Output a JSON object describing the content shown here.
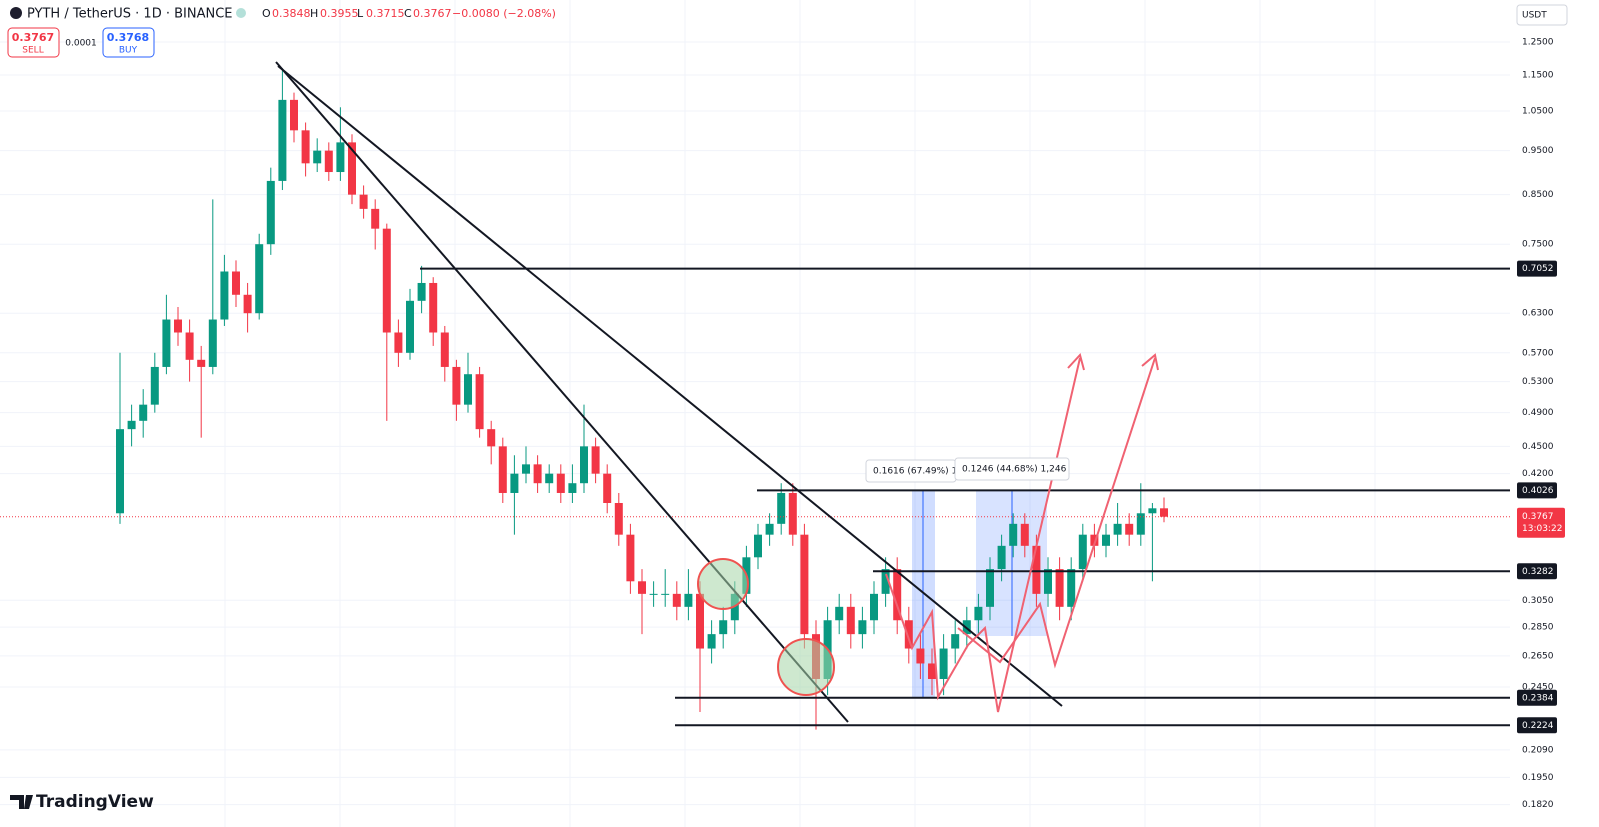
{
  "header": {
    "symbol": "PYTH / TetherUS · 1D · BINANCE",
    "o_label": "O",
    "o": 0.3848,
    "h_label": "H",
    "h": 0.3955,
    "l_label": "L",
    "l": 0.3715,
    "c_label": "C",
    "c": 0.3767,
    "change": "−0.0080 (−2.08%)"
  },
  "trade_panel": {
    "sell_price": 0.3767,
    "sell_label": "SELL",
    "spread": 0.0001,
    "buy_price": 0.3768,
    "buy_label": "BUY"
  },
  "currency": "USDT",
  "logo": "TradingView",
  "chart_data": {
    "type": "candlestick",
    "log_scale": true,
    "grid": true,
    "up_color": "#089981",
    "down_color": "#f23645",
    "ylim": [
      0.172,
      1.39
    ],
    "yticks": [
      {
        "value": 1.25,
        "label": "1.2500"
      },
      {
        "value": 1.15,
        "label": "1.1500"
      },
      {
        "value": 1.05,
        "label": "1.0500"
      },
      {
        "value": 0.95,
        "label": "0.9500"
      },
      {
        "value": 0.85,
        "label": "0.8500"
      },
      {
        "value": 0.75,
        "label": "0.7500"
      },
      {
        "value": 0.63,
        "label": "0.6300"
      },
      {
        "value": 0.57,
        "label": "0.5700"
      },
      {
        "value": 0.53,
        "label": "0.5300"
      },
      {
        "value": 0.49,
        "label": "0.4900"
      },
      {
        "value": 0.45,
        "label": "0.4500"
      },
      {
        "value": 0.42,
        "label": "0.4200"
      },
      {
        "value": 0.305,
        "label": "0.3050"
      },
      {
        "value": 0.285,
        "label": "0.2850"
      },
      {
        "value": 0.265,
        "label": "0.2650"
      },
      {
        "value": 0.245,
        "label": "0.2450"
      },
      {
        "value": 0.209,
        "label": "0.2090"
      },
      {
        "value": 0.195,
        "label": "0.1950"
      },
      {
        "value": 0.182,
        "label": "0.1820"
      }
    ],
    "open": [
      0.38,
      0.47,
      0.48,
      0.5,
      0.55,
      0.62,
      0.6,
      0.56,
      0.55,
      0.62,
      0.7,
      0.66,
      0.63,
      0.75,
      0.88,
      1.08,
      1.0,
      0.92,
      0.95,
      0.9,
      0.97,
      0.85,
      0.82,
      0.78,
      0.6,
      0.57,
      0.65,
      0.68,
      0.6,
      0.55,
      0.5,
      0.54,
      0.47,
      0.45,
      0.4,
      0.42,
      0.43,
      0.41,
      0.42,
      0.4,
      0.41,
      0.45,
      0.42,
      0.39,
      0.36,
      0.32,
      0.31,
      0.31,
      0.31,
      0.3,
      0.31,
      0.27,
      0.28,
      0.29,
      0.31,
      0.34,
      0.36,
      0.37,
      0.4,
      0.36,
      0.28,
      0.25,
      0.29,
      0.3,
      0.28,
      0.29,
      0.31,
      0.33,
      0.29,
      0.27,
      0.26,
      0.25,
      0.27,
      0.28,
      0.29,
      0.3,
      0.33,
      0.35,
      0.37,
      0.35,
      0.31,
      0.33,
      0.3,
      0.33,
      0.36,
      0.35,
      0.36,
      0.37,
      0.36,
      0.38,
      0.3848
    ],
    "high": [
      0.57,
      0.5,
      0.52,
      0.57,
      0.66,
      0.64,
      0.62,
      0.58,
      0.84,
      0.73,
      0.72,
      0.68,
      0.77,
      0.91,
      1.17,
      1.1,
      1.02,
      0.98,
      0.97,
      1.06,
      0.99,
      0.87,
      0.84,
      0.79,
      0.62,
      0.67,
      0.71,
      0.69,
      0.61,
      0.56,
      0.57,
      0.55,
      0.48,
      0.46,
      0.44,
      0.45,
      0.44,
      0.43,
      0.43,
      0.43,
      0.5,
      0.46,
      0.43,
      0.4,
      0.37,
      0.33,
      0.32,
      0.33,
      0.32,
      0.33,
      0.32,
      0.29,
      0.3,
      0.32,
      0.35,
      0.37,
      0.38,
      0.41,
      0.41,
      0.37,
      0.29,
      0.3,
      0.31,
      0.31,
      0.3,
      0.32,
      0.34,
      0.34,
      0.3,
      0.28,
      0.27,
      0.28,
      0.29,
      0.3,
      0.31,
      0.34,
      0.36,
      0.38,
      0.38,
      0.36,
      0.34,
      0.34,
      0.34,
      0.37,
      0.37,
      0.37,
      0.39,
      0.38,
      0.41,
      0.39,
      0.3955
    ],
    "low": [
      0.37,
      0.45,
      0.46,
      0.49,
      0.54,
      0.58,
      0.53,
      0.46,
      0.54,
      0.61,
      0.64,
      0.6,
      0.62,
      0.73,
      0.86,
      0.97,
      0.89,
      0.9,
      0.88,
      0.88,
      0.83,
      0.8,
      0.74,
      0.48,
      0.55,
      0.56,
      0.63,
      0.58,
      0.53,
      0.48,
      0.49,
      0.46,
      0.43,
      0.39,
      0.36,
      0.41,
      0.4,
      0.4,
      0.39,
      0.39,
      0.4,
      0.41,
      0.38,
      0.35,
      0.31,
      0.28,
      0.3,
      0.3,
      0.29,
      0.29,
      0.23,
      0.26,
      0.27,
      0.28,
      0.3,
      0.33,
      0.35,
      0.36,
      0.35,
      0.27,
      0.22,
      0.24,
      0.28,
      0.27,
      0.27,
      0.28,
      0.3,
      0.28,
      0.26,
      0.25,
      0.24,
      0.24,
      0.26,
      0.27,
      0.28,
      0.29,
      0.32,
      0.34,
      0.34,
      0.3,
      0.3,
      0.29,
      0.29,
      0.32,
      0.34,
      0.34,
      0.35,
      0.35,
      0.35,
      0.32,
      0.3715
    ],
    "close": [
      0.47,
      0.48,
      0.5,
      0.55,
      0.62,
      0.6,
      0.56,
      0.55,
      0.62,
      0.7,
      0.66,
      0.63,
      0.75,
      0.88,
      1.08,
      1.0,
      0.92,
      0.95,
      0.9,
      0.97,
      0.85,
      0.82,
      0.78,
      0.6,
      0.57,
      0.65,
      0.68,
      0.6,
      0.55,
      0.5,
      0.54,
      0.47,
      0.45,
      0.4,
      0.42,
      0.43,
      0.41,
      0.42,
      0.4,
      0.41,
      0.45,
      0.42,
      0.39,
      0.36,
      0.32,
      0.31,
      0.31,
      0.31,
      0.3,
      0.31,
      0.27,
      0.28,
      0.29,
      0.31,
      0.34,
      0.36,
      0.37,
      0.4,
      0.36,
      0.28,
      0.25,
      0.29,
      0.3,
      0.28,
      0.29,
      0.31,
      0.33,
      0.29,
      0.27,
      0.26,
      0.25,
      0.27,
      0.28,
      0.29,
      0.3,
      0.33,
      0.35,
      0.37,
      0.35,
      0.31,
      0.33,
      0.3,
      0.33,
      0.36,
      0.35,
      0.36,
      0.37,
      0.36,
      0.38,
      0.3848,
      0.3767
    ],
    "levels": [
      0.7052,
      0.4026,
      0.3282,
      0.2384,
      0.2224
    ],
    "last_price": 0.3767,
    "countdown": "13:03:22",
    "annotations": [
      "0.1616 (67.49%) 1",
      "0.1246 (44.68%) 1,246"
    ]
  }
}
